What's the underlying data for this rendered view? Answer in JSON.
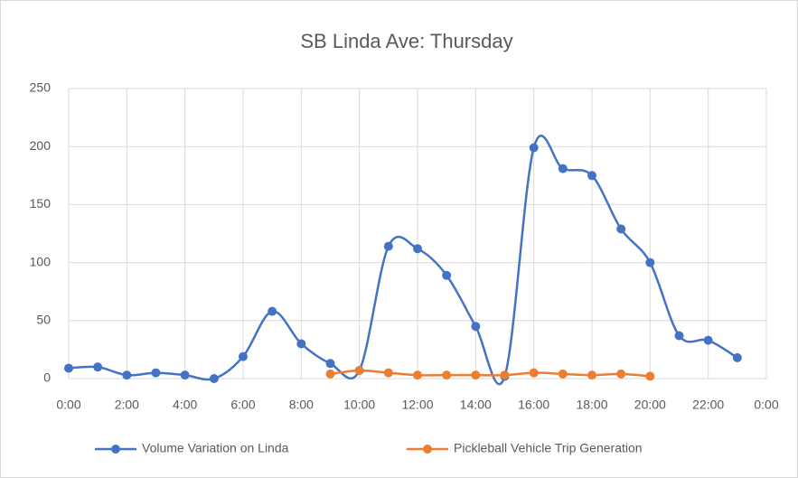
{
  "chart_data": {
    "type": "line",
    "title": "SB Linda Ave: Thursday",
    "x": [
      0,
      1,
      2,
      3,
      4,
      5,
      6,
      7,
      8,
      9,
      10,
      11,
      12,
      13,
      14,
      15,
      16,
      17,
      18,
      19,
      20,
      21,
      22,
      23
    ],
    "series": [
      {
        "name": "Volume Variation on Linda",
        "color": "#4472c4",
        "values": [
          9,
          10,
          3,
          5,
          3,
          0,
          19,
          58,
          30,
          13,
          7,
          114,
          112,
          89,
          45,
          2,
          199,
          181,
          175,
          129,
          100,
          37,
          33,
          18
        ]
      },
      {
        "name": "Pickleball Vehicle Trip Generation",
        "color": "#ed7d31",
        "values": [
          null,
          null,
          null,
          null,
          null,
          null,
          null,
          null,
          null,
          4,
          7,
          5,
          3,
          3,
          3,
          3,
          5,
          4,
          3,
          4,
          2,
          null,
          null,
          null
        ]
      }
    ],
    "xlim": [
      0,
      24
    ],
    "xticks": [
      {
        "value": 0,
        "label": "0:00"
      },
      {
        "value": 2,
        "label": "2:00"
      },
      {
        "value": 4,
        "label": "4:00"
      },
      {
        "value": 6,
        "label": "6:00"
      },
      {
        "value": 8,
        "label": "8:00"
      },
      {
        "value": 10,
        "label": "10:00"
      },
      {
        "value": 12,
        "label": "12:00"
      },
      {
        "value": 14,
        "label": "14:00"
      },
      {
        "value": 16,
        "label": "16:00"
      },
      {
        "value": 18,
        "label": "18:00"
      },
      {
        "value": 20,
        "label": "20:00"
      },
      {
        "value": 22,
        "label": "22:00"
      },
      {
        "value": 24,
        "label": "0:00"
      }
    ],
    "ylim": [
      0,
      250
    ],
    "yticks": [
      0,
      50,
      100,
      150,
      200,
      250
    ],
    "grid": true,
    "legend": "bottom",
    "smooth": true
  }
}
